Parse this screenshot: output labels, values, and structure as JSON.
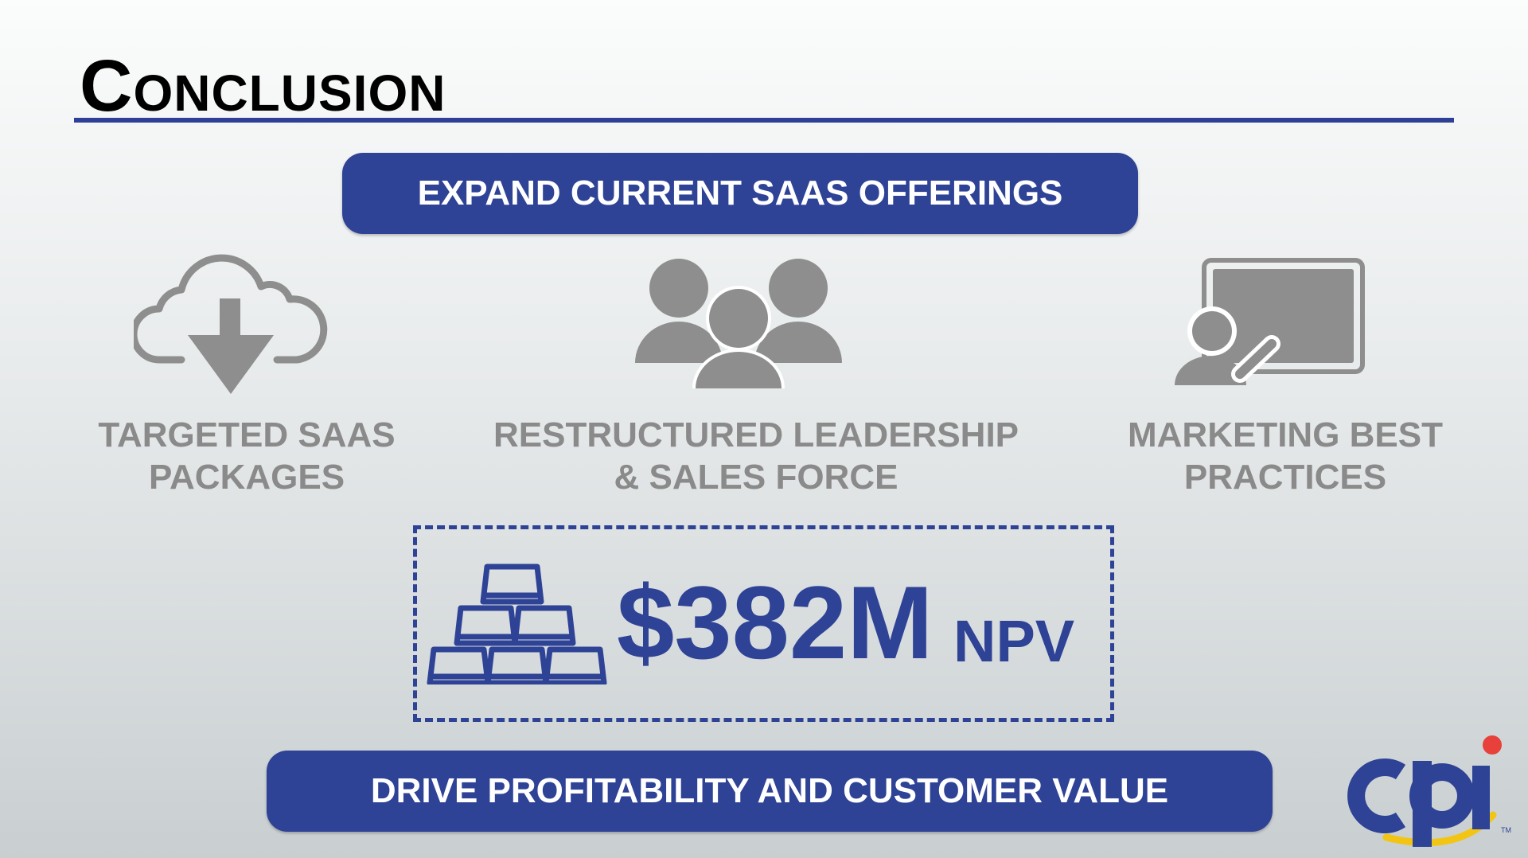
{
  "slide": {
    "title": "Conclusion",
    "top_banner": "EXPAND CURRENT SAAS OFFERINGS",
    "bottom_banner": "DRIVE PROFITABILITY AND CUSTOMER VALUE"
  },
  "pillars": [
    {
      "icon": "cloud-download-icon",
      "line1": "TARGETED SAAS",
      "line2": "PACKAGES"
    },
    {
      "icon": "group-people-icon",
      "line1": "RESTRUCTURED LEADERSHIP",
      "line2": "& SALES FORCE"
    },
    {
      "icon": "presentation-board-icon",
      "line1": "MARKETING BEST",
      "line2": "PRACTICES"
    }
  ],
  "npv": {
    "amount": "$382M",
    "unit": "NPV",
    "icon": "gold-bars-icon"
  },
  "logo": {
    "text": "cpi",
    "trademark": "TM"
  },
  "colors": {
    "accent": "#2e4296",
    "icon_gray": "#8e8e8e",
    "label_gray": "#8a8a8a",
    "logo_yellow": "#f2c514",
    "logo_red": "#e8403a"
  }
}
